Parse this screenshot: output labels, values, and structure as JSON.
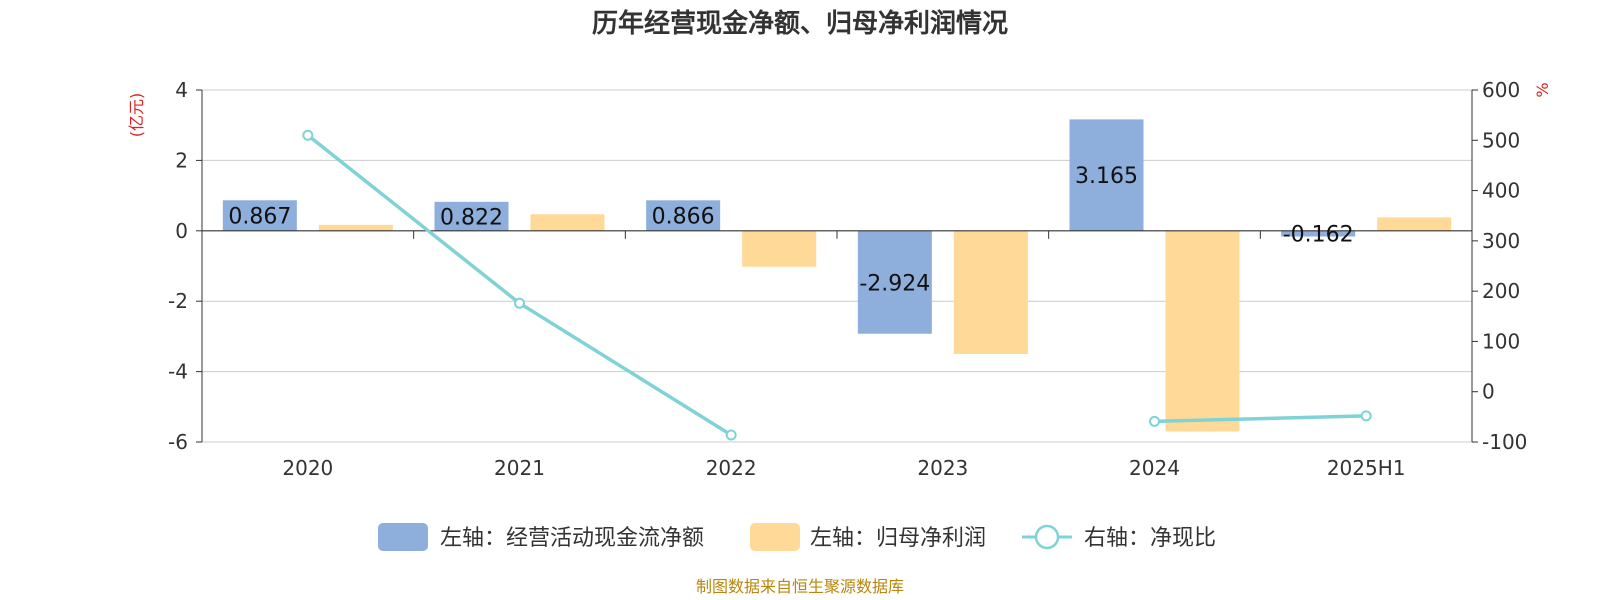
{
  "chart_data": {
    "type": "bar",
    "title": "历年经营现金净额、归母净利润情况",
    "categories": [
      "2020",
      "2021",
      "2022",
      "2023",
      "2024",
      "2025H1"
    ],
    "left_axis": {
      "unit": "(亿元)",
      "ylim": [
        -6,
        4
      ],
      "ticks": [
        4,
        2,
        0,
        -2,
        -4,
        -6
      ]
    },
    "right_axis": {
      "unit": "%",
      "ylim": [
        -100,
        600
      ],
      "ticks": [
        600,
        500,
        400,
        300,
        200,
        100,
        0,
        -100
      ]
    },
    "series": [
      {
        "name": "左轴：经营活动现金流净额",
        "type": "bar",
        "axis": "left",
        "color": "#8eaedb",
        "values": [
          0.867,
          0.822,
          0.866,
          -2.924,
          3.165,
          -0.162
        ],
        "labels": [
          "0.867",
          "0.822",
          "0.866",
          "-2.924",
          "3.165",
          "-0.162"
        ]
      },
      {
        "name": "左轴：归母净利润",
        "type": "bar",
        "axis": "left",
        "color": "#ffd998",
        "values": [
          0.17,
          0.47,
          -1.02,
          -3.5,
          -5.7,
          0.38
        ]
      },
      {
        "name": "右轴：净现比",
        "type": "line",
        "axis": "right",
        "color": "#7fd3d6",
        "values": [
          510,
          176,
          -86,
          null,
          -59,
          -48
        ]
      }
    ],
    "grid": true,
    "legend_position": "bottom"
  },
  "source_note": "制图数据来自恒生聚源数据库"
}
